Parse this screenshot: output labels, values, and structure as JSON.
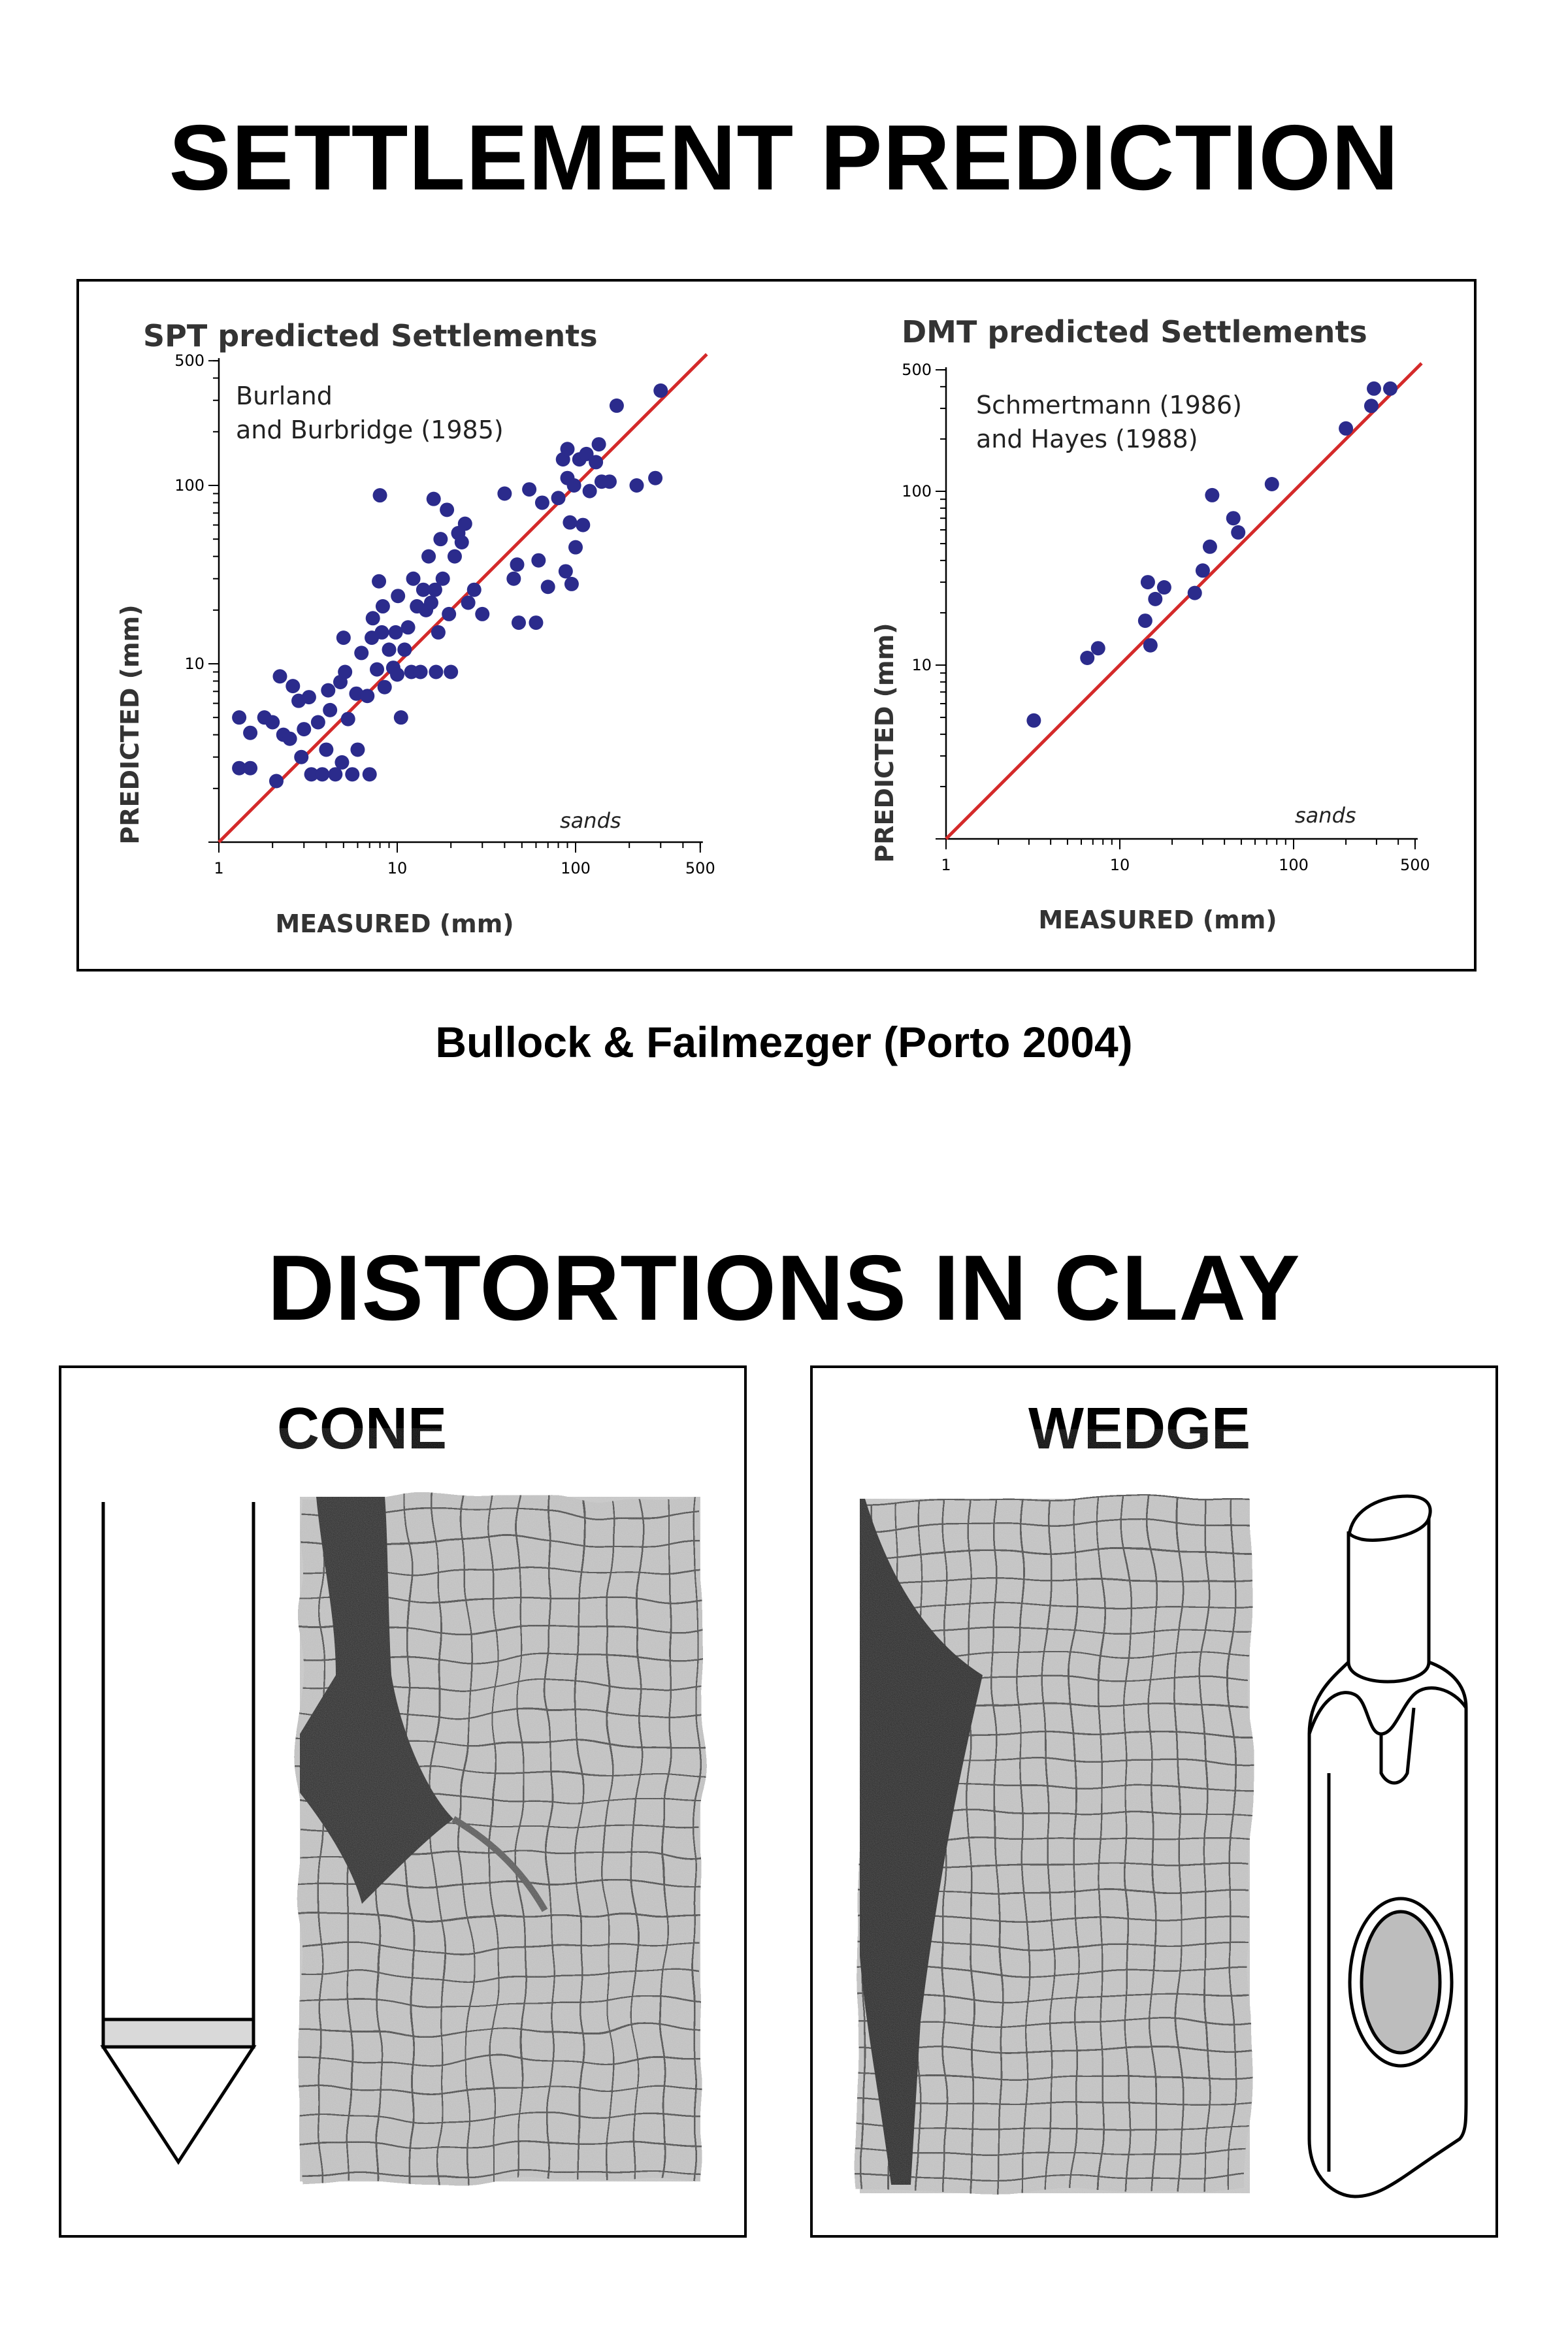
{
  "page": {
    "title_top": "SETTLEMENT PREDICTION",
    "citation": "Bullock & Failmezger  (Porto 2004)",
    "title_bottom": "DISTORTIONS IN CLAY"
  },
  "clay": {
    "cone_label": "CONE",
    "wedge_label": "WEDGE"
  },
  "colors": {
    "points": "#2b2b8c",
    "line": "#d42a2a",
    "grid_photo_bg": "#b9b9b9",
    "grid_lines": "#505050",
    "probe_fill": "#2a2a2a",
    "sleeve_fill": "#d9d9d9",
    "membrane_fill": "#bdbdbd"
  },
  "chart_data": [
    {
      "type": "scatter",
      "title": "SPT predicted Settlements",
      "annotation": "Burland\nand Burbridge (1985)",
      "annotation_lines": [
        "Burland",
        "and Burbridge (1985)"
      ],
      "corner_label": "sands",
      "xlabel": "MEASURED (mm)",
      "ylabel": "PREDICTED (mm)",
      "xscale": "log",
      "yscale": "log",
      "xlim": [
        1,
        500
      ],
      "ylim": [
        1,
        500
      ],
      "xticks": [
        "1",
        "10",
        "100",
        "500"
      ],
      "yticks": [
        "10",
        "100",
        "500"
      ],
      "reference_line": "1:1",
      "points": [
        [
          1.3,
          5.0
        ],
        [
          1.3,
          2.6
        ],
        [
          1.5,
          2.6
        ],
        [
          1.5,
          4.1
        ],
        [
          1.8,
          5.0
        ],
        [
          2.0,
          4.7
        ],
        [
          2.1,
          2.2
        ],
        [
          2.2,
          8.5
        ],
        [
          2.3,
          4.0
        ],
        [
          2.5,
          3.8
        ],
        [
          2.6,
          7.5
        ],
        [
          2.8,
          6.2
        ],
        [
          2.9,
          3.0
        ],
        [
          3.0,
          4.3
        ],
        [
          3.2,
          6.5
        ],
        [
          3.3,
          2.4
        ],
        [
          3.6,
          4.7
        ],
        [
          3.8,
          2.4
        ],
        [
          4.0,
          3.3
        ],
        [
          4.1,
          7.1
        ],
        [
          4.2,
          5.5
        ],
        [
          4.5,
          2.4
        ],
        [
          4.8,
          7.9
        ],
        [
          4.9,
          2.8
        ],
        [
          5.0,
          14.0
        ],
        [
          5.1,
          9.0
        ],
        [
          5.3,
          4.9
        ],
        [
          5.6,
          2.4
        ],
        [
          5.9,
          6.8
        ],
        [
          6.0,
          3.3
        ],
        [
          6.3,
          11.5
        ],
        [
          6.8,
          6.6
        ],
        [
          7.0,
          2.4
        ],
        [
          7.2,
          14.0
        ],
        [
          7.3,
          18.0
        ],
        [
          7.7,
          9.3
        ],
        [
          7.9,
          29.0
        ],
        [
          8.0,
          88.0
        ],
        [
          8.2,
          15.0
        ],
        [
          8.3,
          21.0
        ],
        [
          8.5,
          7.4
        ],
        [
          9.0,
          12.0
        ],
        [
          9.5,
          9.5
        ],
        [
          9.8,
          15.0
        ],
        [
          10.0,
          8.7
        ],
        [
          10.1,
          24.0
        ],
        [
          10.5,
          5.0
        ],
        [
          11.0,
          12.0
        ],
        [
          11.5,
          16.0
        ],
        [
          12.0,
          9.0
        ],
        [
          12.3,
          30.0
        ],
        [
          12.9,
          21.0
        ],
        [
          13.5,
          9.0
        ],
        [
          14.0,
          26.0
        ],
        [
          14.5,
          20.0
        ],
        [
          15.0,
          40.0
        ],
        [
          15.5,
          22.0
        ],
        [
          16.0,
          84.0
        ],
        [
          16.3,
          26.0
        ],
        [
          16.5,
          9.0
        ],
        [
          17.0,
          15.0
        ],
        [
          17.5,
          50.0
        ],
        [
          18.0,
          30.0
        ],
        [
          19.0,
          73.0
        ],
        [
          19.5,
          19.0
        ],
        [
          20.0,
          9.0
        ],
        [
          21.0,
          40.0
        ],
        [
          22.0,
          54.0
        ],
        [
          23.0,
          48.0
        ],
        [
          24.0,
          61.0
        ],
        [
          25.0,
          22.0
        ],
        [
          27.0,
          26.0
        ],
        [
          30.0,
          19.0
        ],
        [
          40.0,
          90.0
        ],
        [
          45.0,
          30.0
        ],
        [
          47.0,
          36.0
        ],
        [
          48.0,
          17.0
        ],
        [
          55.0,
          95.0
        ],
        [
          60.0,
          17.0
        ],
        [
          62.0,
          38.0
        ],
        [
          65.0,
          80.0
        ],
        [
          70.0,
          27.0
        ],
        [
          80.0,
          85.0
        ],
        [
          85.0,
          140.0
        ],
        [
          88.0,
          33.0
        ],
        [
          90.0,
          110.0
        ],
        [
          90.0,
          160.0
        ],
        [
          93.0,
          62.0
        ],
        [
          95.0,
          28.0
        ],
        [
          98.0,
          100.0
        ],
        [
          100.0,
          45.0
        ],
        [
          105.0,
          140.0
        ],
        [
          110.0,
          60.0
        ],
        [
          115.0,
          150.0
        ],
        [
          120.0,
          93.0
        ],
        [
          130.0,
          135.0
        ],
        [
          135.0,
          170.0
        ],
        [
          140.0,
          105.0
        ],
        [
          155.0,
          105.0
        ],
        [
          170.0,
          280.0
        ],
        [
          220.0,
          100.0
        ],
        [
          280.0,
          110.0
        ],
        [
          300.0,
          340.0
        ]
      ]
    },
    {
      "type": "scatter",
      "title": "DMT predicted Settlements",
      "annotation": "Schmertmann (1986)\nand Hayes (1988)",
      "annotation_lines": [
        "Schmertmann (1986)",
        "and Hayes (1988)"
      ],
      "corner_label": "sands",
      "xlabel": "MEASURED (mm)",
      "ylabel": "PREDICTED (mm)",
      "xscale": "log",
      "yscale": "log",
      "xlim": [
        1,
        500
      ],
      "ylim": [
        1,
        500
      ],
      "xticks": [
        "1",
        "10",
        "100",
        "500"
      ],
      "yticks": [
        "10",
        "100",
        "500"
      ],
      "reference_line": "1:1",
      "points": [
        [
          3.2,
          4.8
        ],
        [
          6.5,
          11.0
        ],
        [
          7.5,
          12.5
        ],
        [
          14.0,
          18.0
        ],
        [
          14.5,
          30.0
        ],
        [
          15.0,
          13.0
        ],
        [
          16.0,
          24.0
        ],
        [
          18.0,
          28.0
        ],
        [
          27.0,
          26.0
        ],
        [
          30.0,
          35.0
        ],
        [
          33.0,
          48.0
        ],
        [
          34.0,
          95.0
        ],
        [
          45.0,
          70.0
        ],
        [
          48.0,
          58.0
        ],
        [
          75.0,
          110.0
        ],
        [
          200.0,
          230.0
        ],
        [
          280.0,
          310.0
        ],
        [
          290.0,
          390.0
        ],
        [
          360.0,
          390.0
        ]
      ]
    }
  ]
}
